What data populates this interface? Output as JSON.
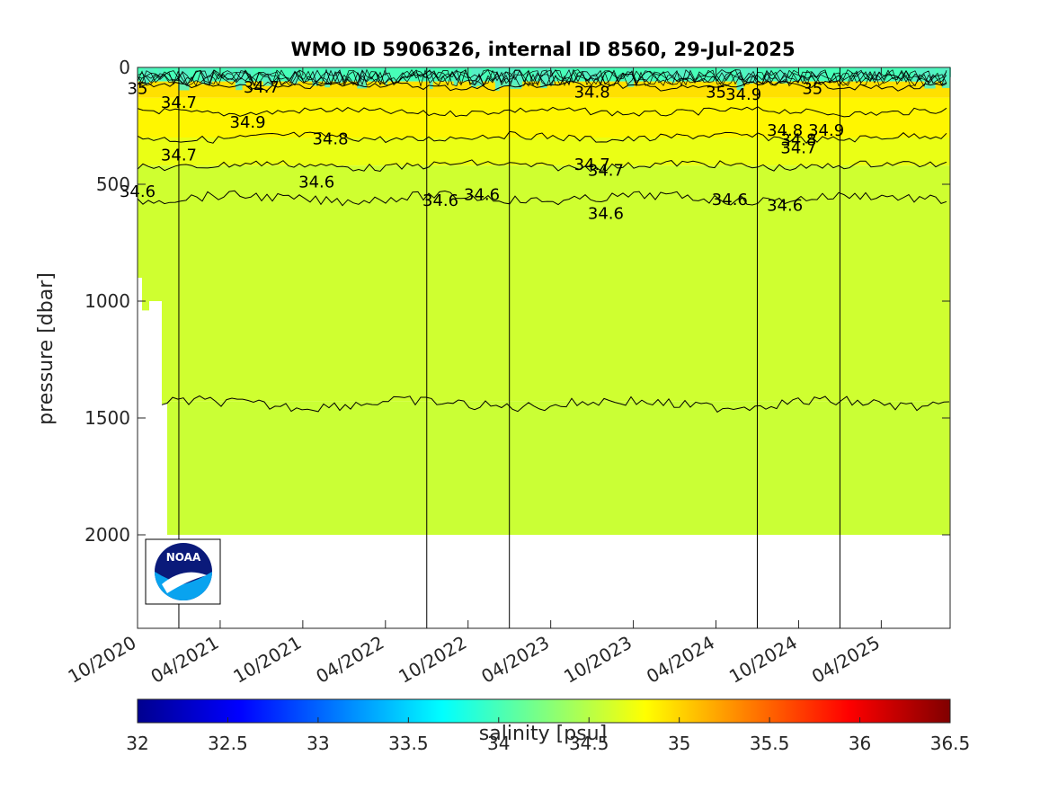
{
  "chart_data": {
    "type": "heatmap",
    "title": "WMO ID 5906326, internal ID 8560, 29-Jul-2025",
    "xlabel": "",
    "ylabel": "pressure [dbar]",
    "x_tick_labels": [
      "10/2020",
      "04/2021",
      "10/2021",
      "04/2022",
      "10/2022",
      "04/2023",
      "10/2023",
      "04/2024",
      "10/2024",
      "04/2025"
    ],
    "y_ticks": [
      0,
      500,
      1000,
      1500,
      2000
    ],
    "ylim": [
      2400,
      0
    ],
    "y_reversed": true,
    "colorbar": {
      "label": "salinity [psu]",
      "range": [
        32,
        36.5
      ],
      "ticks": [
        32,
        32.5,
        33,
        33.5,
        34,
        34.5,
        35,
        35.5,
        36,
        36.5
      ],
      "tick_labels": [
        "32",
        "32.5",
        "33",
        "33.5",
        "34",
        "34.5",
        "35",
        "35.5",
        "36",
        "36.5"
      ]
    },
    "layers": [
      {
        "top": 0,
        "bottom": 60,
        "salinity": 34.0
      },
      {
        "top": 60,
        "bottom": 130,
        "salinity": 34.95
      },
      {
        "top": 130,
        "bottom": 300,
        "salinity": 34.85
      },
      {
        "top": 300,
        "bottom": 420,
        "salinity": 34.72
      },
      {
        "top": 420,
        "bottom": 1430,
        "salinity": 34.6
      },
      {
        "top": 1430,
        "bottom": 2000,
        "salinity": 34.58
      }
    ],
    "contour_levels": [
      34.6,
      34.7,
      34.8,
      34.9,
      35
    ],
    "contour_labels": [
      {
        "text": "35",
        "x": "10/2020",
        "y": 90
      },
      {
        "text": "34.7",
        "x": "01/2021",
        "y": 150
      },
      {
        "text": "34.7",
        "x": "01/2021",
        "y": 375
      },
      {
        "text": "34.6",
        "x": "10/2020",
        "y": 530
      },
      {
        "text": "34.7",
        "x": "07/2021",
        "y": 85
      },
      {
        "text": "34.9",
        "x": "06/2021",
        "y": 235
      },
      {
        "text": "34.8",
        "x": "12/2021",
        "y": 305
      },
      {
        "text": "34.6",
        "x": "11/2021",
        "y": 490
      },
      {
        "text": "34.6",
        "x": "08/2022",
        "y": 570
      },
      {
        "text": "34.6",
        "x": "11/2022",
        "y": 545
      },
      {
        "text": "34.7",
        "x": "07/2023",
        "y": 415
      },
      {
        "text": "34.7",
        "x": "08/2023",
        "y": 440
      },
      {
        "text": "34.8",
        "x": "07/2023",
        "y": 105
      },
      {
        "text": "34.6",
        "x": "08/2023",
        "y": 625
      },
      {
        "text": "35",
        "x": "04/2024",
        "y": 105
      },
      {
        "text": "34.9",
        "x": "06/2024",
        "y": 115
      },
      {
        "text": "34.6",
        "x": "05/2024",
        "y": 565
      },
      {
        "text": "35",
        "x": "11/2024",
        "y": 90
      },
      {
        "text": "34.8",
        "x": "09/2024",
        "y": 270
      },
      {
        "text": "34.8",
        "x": "10/2024",
        "y": 310
      },
      {
        "text": "34.7",
        "x": "10/2024",
        "y": 345
      },
      {
        "text": "34.9",
        "x": "12/2024",
        "y": 270
      },
      {
        "text": "34.6",
        "x": "09/2024",
        "y": 590
      }
    ],
    "cycle_markers": [
      "01/2021",
      "07/2022",
      "01/2023",
      "07/2024",
      "01/2025"
    ],
    "grid": false,
    "legend": "none"
  },
  "logo": {
    "text": "NOAA"
  },
  "colors": {
    "surface": "#54f0c4",
    "mixed": "#ffe200",
    "upper": "#fff000",
    "thermo": "#e9ff1f",
    "mid": "#bdff45",
    "deep": "#ccff3a",
    "noaa_blue": "#0a1a7a",
    "noaa_cyan": "#09a3ef"
  }
}
